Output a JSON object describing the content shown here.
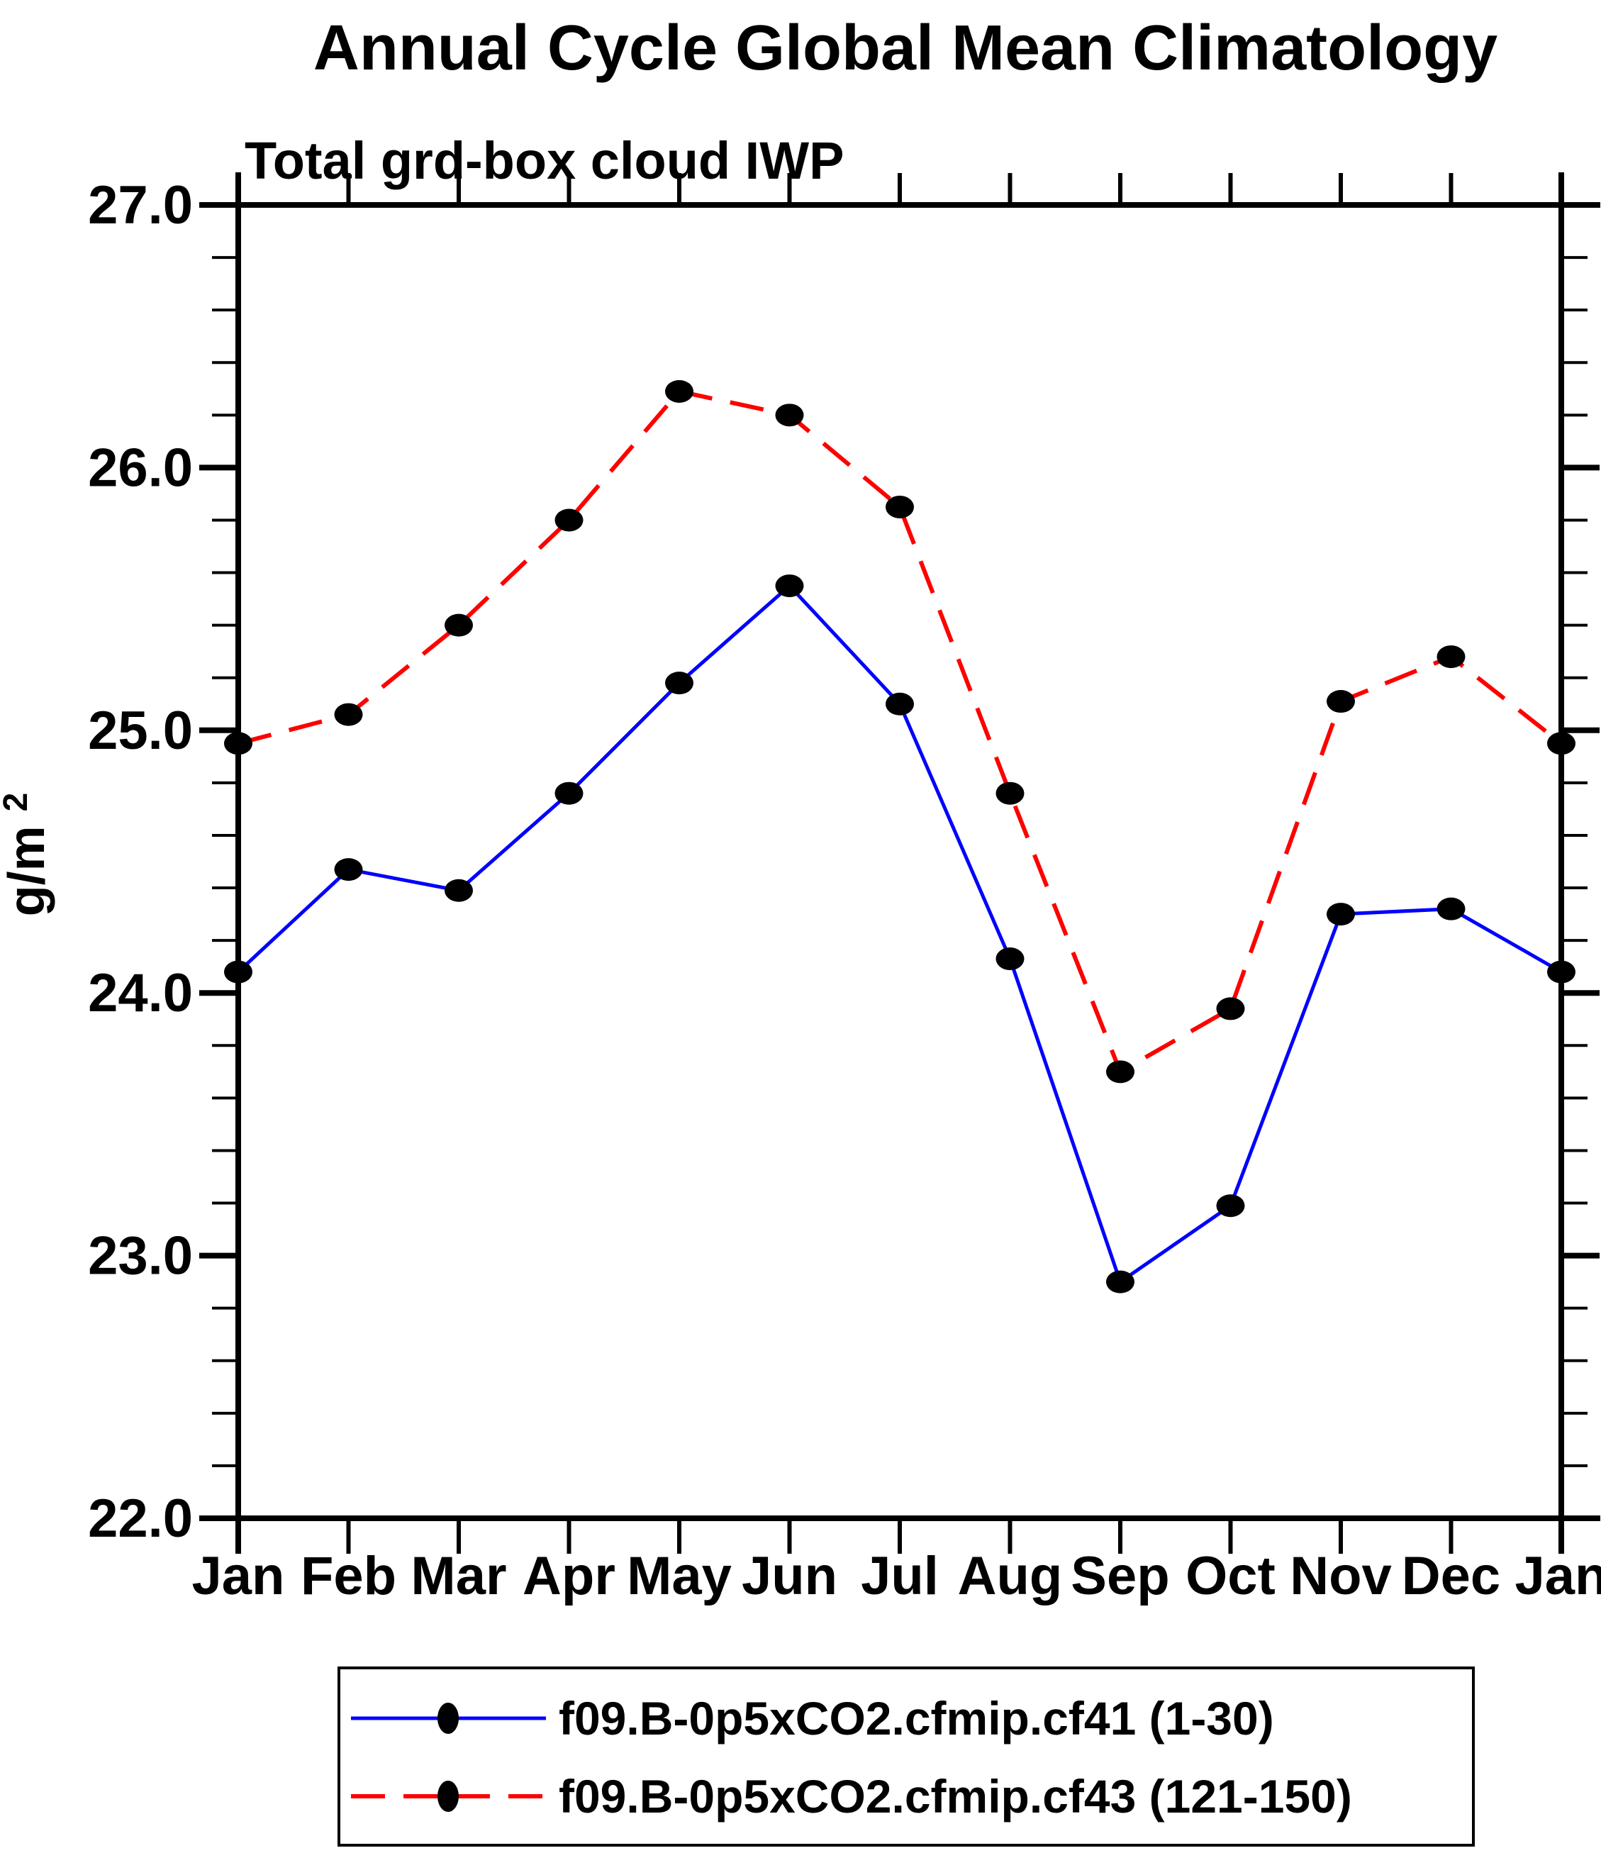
{
  "title": "Annual Cycle Global Mean Climatology",
  "subtitle": "Total grd-box cloud IWP",
  "ylabel": {
    "base": "g/m",
    "sup": "2"
  },
  "colors": {
    "series1": "#0000ff",
    "series2": "#ff0000",
    "marker": "#000000",
    "axis": "#000000",
    "background": "#ffffff"
  },
  "chart_data": {
    "type": "line",
    "categories": [
      "Jan",
      "Feb",
      "Mar",
      "Apr",
      "May",
      "Jun",
      "Jul",
      "Aug",
      "Sep",
      "Oct",
      "Nov",
      "Dec",
      "Jan"
    ],
    "series": [
      {
        "name": "f09.B-0p5xCO2.cfmip.cf41 (1-30)",
        "color": "#0000ff",
        "style": "solid",
        "marker": "filled-circle",
        "values": [
          24.08,
          24.47,
          24.39,
          24.76,
          25.18,
          25.55,
          25.1,
          24.13,
          22.9,
          23.19,
          24.3,
          24.32,
          24.08
        ]
      },
      {
        "name": "f09.B-0p5xCO2.cfmip.cf43 (121-150)",
        "color": "#ff0000",
        "style": "dashed",
        "marker": "filled-circle",
        "values": [
          24.95,
          25.06,
          25.4,
          25.8,
          26.29,
          26.2,
          25.85,
          24.76,
          23.7,
          23.94,
          25.11,
          25.28,
          24.95
        ]
      }
    ],
    "title": "Annual Cycle Global Mean Climatology",
    "subtitle": "Total grd-box cloud IWP",
    "xlabel": "",
    "ylabel": "g/m2",
    "ylim": [
      22.0,
      27.0
    ],
    "yticks": [
      22.0,
      23.0,
      24.0,
      25.0,
      26.0,
      27.0
    ],
    "ytick_labels": [
      "22.0",
      "23.0",
      "24.0",
      "25.0",
      "26.0",
      "27.0"
    ],
    "minor_tick_step": 0.2,
    "grid": "off",
    "frame": "box-with-outward-ticks",
    "legend_position": "bottom"
  }
}
